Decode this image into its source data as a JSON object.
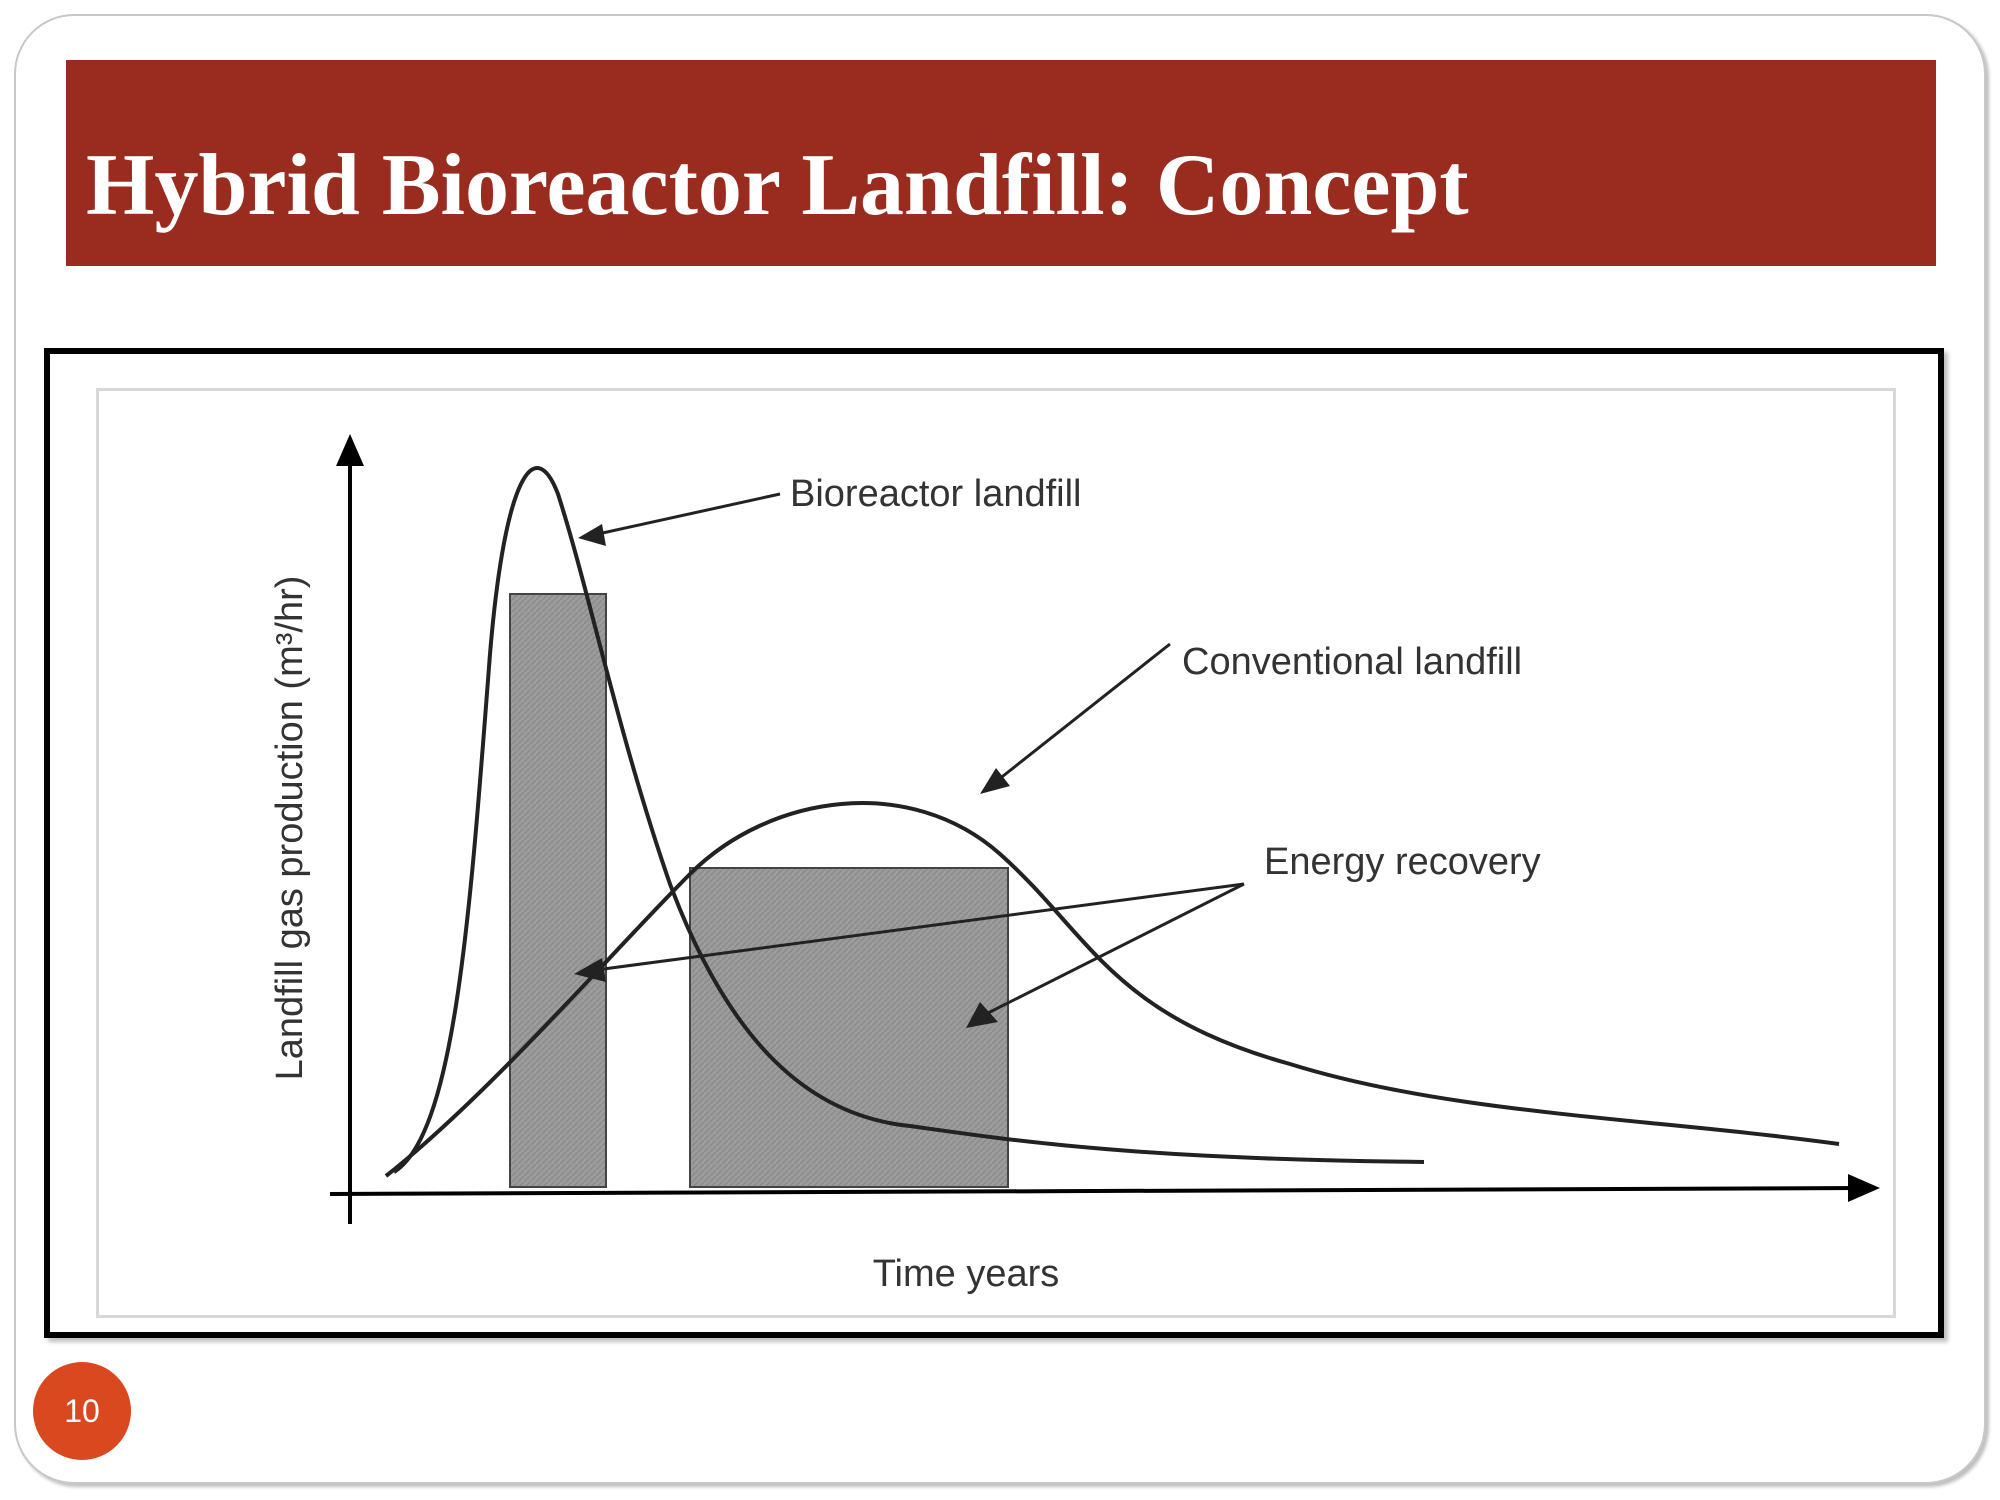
{
  "slide": {
    "title": "Hybrid Bioreactor Landfill: Concept",
    "page_number": "10"
  },
  "colors": {
    "title_bar": "#9a2b1f",
    "page_badge": "#d9481e",
    "shaded_area": "#9a9a9a"
  },
  "diagram": {
    "y_axis_label": "Landfill gas production (m³/hr)",
    "x_axis_label": "Time years",
    "labels": {
      "bioreactor": "Bioreactor landfill",
      "conventional": "Conventional landfill",
      "energy_recovery": "Energy recovery"
    }
  }
}
